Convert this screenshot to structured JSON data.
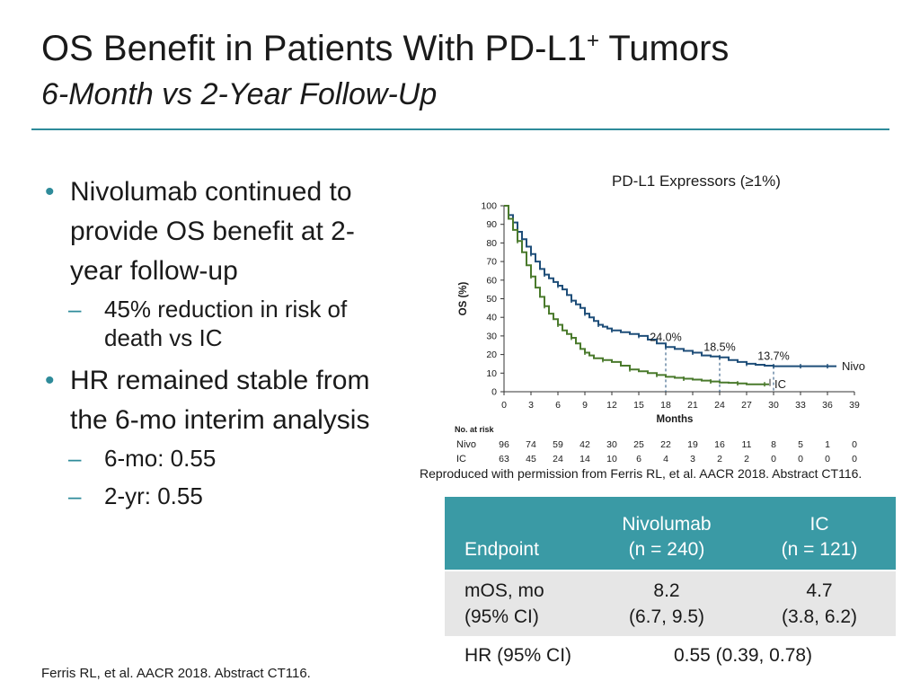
{
  "slide": {
    "title_main": "OS Benefit in Patients With PD-L1",
    "title_sup": "+",
    "title_end": " Tumors",
    "subtitle": "6-Month vs 2-Year Follow-Up",
    "accent_color": "#2e8b9a"
  },
  "bullets": [
    {
      "text": "Nivolumab continued to provide OS benefit at 2-year follow-up",
      "subs": [
        "45% reduction in risk of death vs IC"
      ]
    },
    {
      "text": "HR remained stable from the 6-mo interim analysis",
      "subs": [
        "6-mo: 0.55",
        "2-yr: 0.55"
      ]
    }
  ],
  "chart_data": {
    "type": "line",
    "title": "PD-L1 Expressors (≥1%)",
    "xlabel": "Months",
    "ylabel": "OS (%)",
    "xlim": [
      0,
      39
    ],
    "ylim": [
      0,
      100
    ],
    "xticks": [
      0,
      3,
      6,
      9,
      12,
      15,
      18,
      21,
      24,
      27,
      30,
      33,
      36,
      39
    ],
    "yticks": [
      0,
      10,
      20,
      30,
      40,
      50,
      60,
      70,
      80,
      90,
      100
    ],
    "series": [
      {
        "name": "Nivo",
        "color": "#1f4e79",
        "x": [
          0,
          0.5,
          1,
          1.5,
          2,
          2.5,
          3,
          3.5,
          4,
          4.5,
          5,
          5.5,
          6,
          6.5,
          7,
          7.5,
          8,
          8.5,
          9,
          9.5,
          10,
          10.5,
          11,
          11.5,
          12,
          13,
          14,
          15,
          16,
          17,
          18,
          19,
          20,
          21,
          22,
          23,
          24,
          25,
          26,
          27,
          28,
          29,
          30,
          31,
          32,
          33,
          34,
          35,
          36,
          37
        ],
        "y": [
          100,
          95,
          91,
          86,
          82,
          78,
          74,
          70,
          66,
          63,
          61,
          59,
          57,
          55,
          52,
          49,
          47,
          45,
          42,
          40,
          38,
          36,
          35,
          34,
          33,
          32,
          31,
          30,
          28,
          26,
          24,
          23,
          22,
          21,
          19.5,
          19,
          18.5,
          17,
          16,
          15,
          14.5,
          14,
          13.7,
          13.7,
          13.7,
          13.7,
          13.7,
          13.7,
          13.7,
          13.7
        ]
      },
      {
        "name": "IC",
        "color": "#4a7a2c",
        "x": [
          0,
          0.5,
          1,
          1.5,
          2,
          2.5,
          3,
          3.5,
          4,
          4.5,
          5,
          5.5,
          6,
          6.5,
          7,
          7.5,
          8,
          8.5,
          9,
          9.5,
          10,
          11,
          12,
          13,
          14,
          15,
          16,
          17,
          18,
          19,
          20,
          21,
          22,
          23,
          24,
          25,
          26,
          27,
          28,
          29,
          29.5
        ],
        "y": [
          100,
          93,
          87,
          81,
          75,
          68,
          62,
          56,
          51,
          46,
          42,
          39,
          36,
          33,
          31,
          29,
          26,
          23,
          21,
          19.5,
          18,
          17,
          16,
          14,
          12,
          11,
          10,
          9,
          8,
          7.5,
          7,
          6.5,
          6,
          5.5,
          5,
          4.8,
          4.5,
          4,
          4,
          4,
          4
        ]
      }
    ],
    "annotations": [
      {
        "x": 18,
        "y": 24,
        "label": "24.0%"
      },
      {
        "x": 24,
        "y": 18.5,
        "label": "18.5%"
      },
      {
        "x": 30,
        "y": 13.7,
        "label": "13.7%"
      }
    ],
    "at_risk": {
      "title": "No. at risk",
      "rows": [
        {
          "name": "Nivo",
          "values": [
            "96",
            "74",
            "59",
            "42",
            "30",
            "25",
            "22",
            "19",
            "16",
            "11",
            "8",
            "5",
            "1",
            "0"
          ]
        },
        {
          "name": "IC",
          "values": [
            "63",
            "45",
            "24",
            "14",
            "10",
            "6",
            "4",
            "3",
            "2",
            "2",
            "0",
            "0",
            "0",
            "0"
          ]
        }
      ]
    }
  },
  "caption": "Reproduced with permission from Ferris RL, et al.  AACR  2018. Abstract CT116.",
  "table": {
    "headers": {
      "endpoint": "Endpoint",
      "nivo_line1": "Nivolumab",
      "nivo_line2": "(n = 240)",
      "ic_line1": "IC",
      "ic_line2": "(n = 121)"
    },
    "rows": [
      {
        "label1": "mOS, mo",
        "label2": "(95% CI)",
        "nivo1": "8.2",
        "nivo2": "(6.7, 9.5)",
        "ic1": "4.7",
        "ic2": "(3.8, 6.2)"
      },
      {
        "label": "HR (95% CI)",
        "value": "0.55 (0.39, 0.78)"
      }
    ]
  },
  "footer": "Ferris RL, et al. AACR 2018. Abstract CT116."
}
